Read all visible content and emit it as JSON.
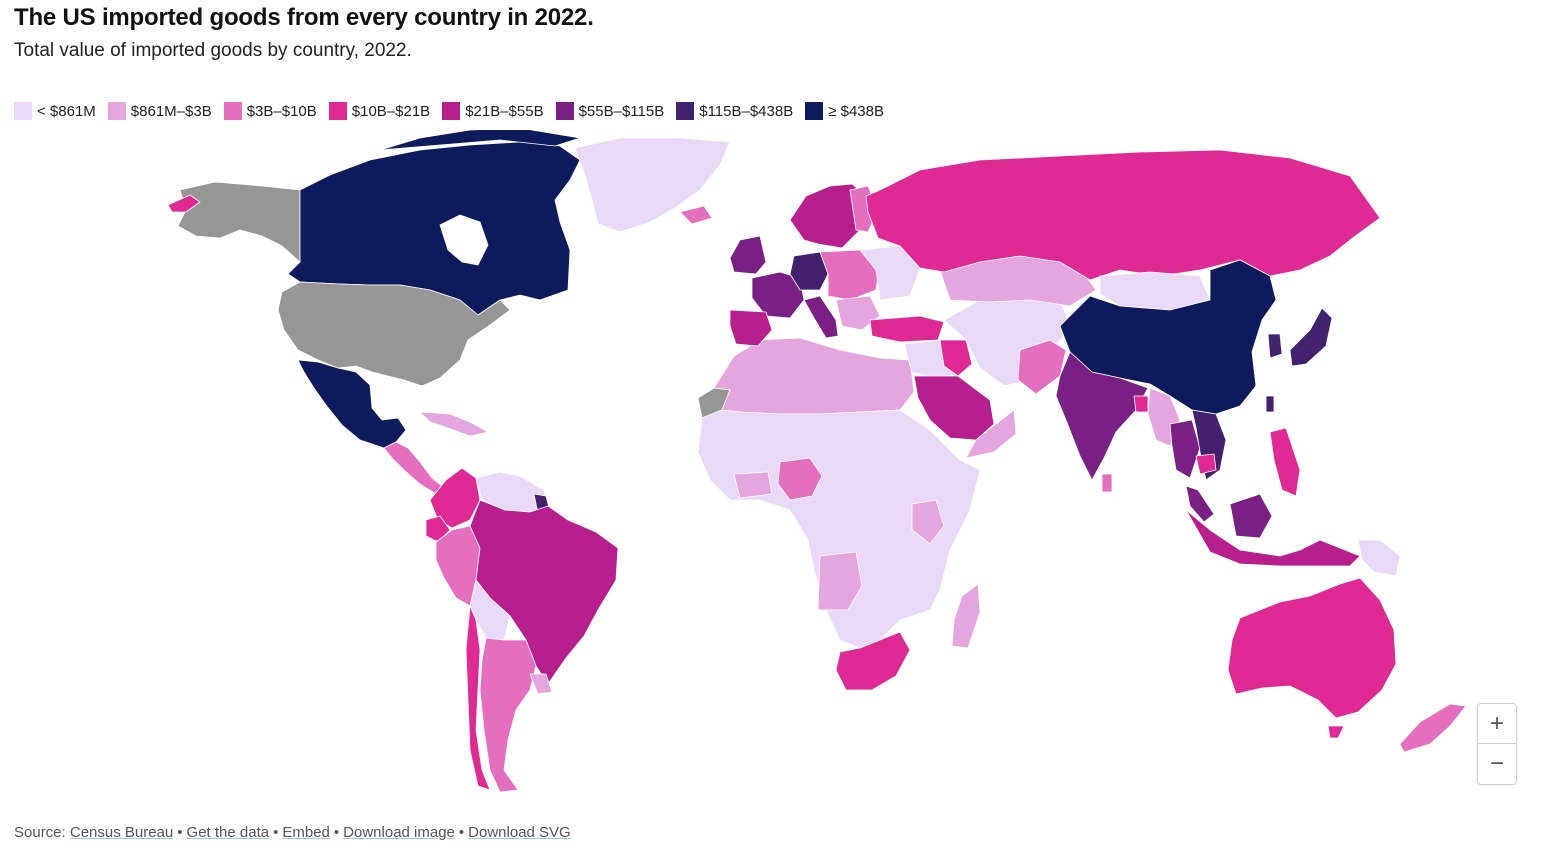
{
  "title": "The US imported goods from every country in 2022.",
  "subtitle": "Total value of imported goods by country, 2022.",
  "legend": [
    {
      "label": "< $861M",
      "color": "#e9d9f7"
    },
    {
      "label": "$861M–$3B",
      "color": "#e4a6dd"
    },
    {
      "label": "$3B–$10B",
      "color": "#e46fbf"
    },
    {
      "label": "$10B–$21B",
      "color": "#de2a92"
    },
    {
      "label": "$21B–$55B",
      "color": "#b71f8c"
    },
    {
      "label": "$55B–$115B",
      "color": "#7a2084"
    },
    {
      "label": "$115B–$438B",
      "color": "#42226e"
    },
    {
      "label": "≥ $438B",
      "color": "#0d1b5c"
    }
  ],
  "no_data_color": "#969696",
  "zoom": {
    "in_label": "+",
    "out_label": "−"
  },
  "footer": {
    "source_prefix": "Source:",
    "source_link": "Census Bureau",
    "get_data": "Get the data",
    "embed": "Embed",
    "download_image": "Download image",
    "download_svg": "Download SVG",
    "separator": "•"
  }
}
